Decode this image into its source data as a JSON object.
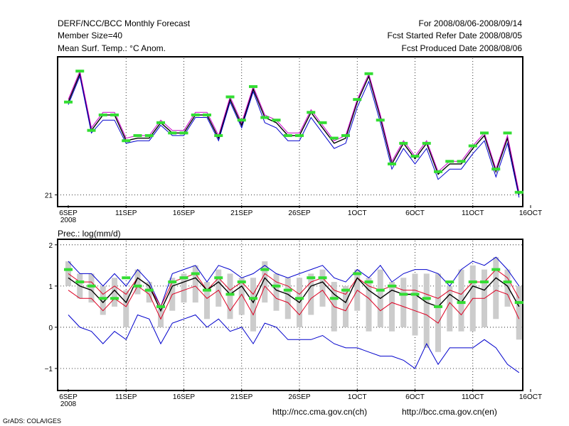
{
  "header": {
    "left1": "DERF/NCC/BCC Monthly Forecast",
    "left2": "Member Size=40",
    "left3": "Mean Surf. Temp.: °C Anom.",
    "right1": "For 2008/08/06-2008/09/14",
    "right2": "Fcst Started Refer Date 2008/08/05",
    "right3": "Fcst Produced Date 2008/08/06"
  },
  "footer": {
    "url_ch": "http://ncc.cma.gov.cn(ch)",
    "url_en": "http://bcc.cma.gov.cn(en)",
    "credit": "GrADS: COLA/IGES"
  },
  "colors": {
    "black": "#000000",
    "blue": "#0000cc",
    "red": "#dd0022",
    "magenta": "#cc00cc",
    "green": "#33dd33",
    "grey": "#cccccc"
  },
  "chart_data": [
    {
      "type": "line",
      "title": "Mean Surf. Temp.: °C Anom.",
      "x_ticks": [
        "6SEP",
        "11SEP",
        "16SEP",
        "21SEP",
        "26SEP",
        "1OCT",
        "6OCT",
        "11OCT",
        "16OCT"
      ],
      "x_year": "2008",
      "ylim": [
        20.6,
        26.3
      ],
      "y_ticks": [
        21
      ],
      "y_tick_labels": [
        "21"
      ],
      "series": [
        {
          "name": "ensemble mean",
          "color": "black",
          "values": [
            24.6,
            25.7,
            23.5,
            24.1,
            24.1,
            23.1,
            23.2,
            23.2,
            23.8,
            23.4,
            23.4,
            24.1,
            24.1,
            23.2,
            24.7,
            23.7,
            25.1,
            24.0,
            23.8,
            23.3,
            23.3,
            24.2,
            23.6,
            23.0,
            23.2,
            24.6,
            25.6,
            24.0,
            22.2,
            23.0,
            22.4,
            23.0,
            21.8,
            22.2,
            22.2,
            22.8,
            23.3,
            21.9,
            23.2,
            21.0
          ]
        },
        {
          "name": "member spread upper",
          "color": "magenta",
          "values": [
            24.7,
            25.8,
            23.6,
            24.2,
            24.2,
            23.2,
            23.3,
            23.3,
            23.9,
            23.5,
            23.5,
            24.2,
            24.2,
            23.3,
            24.8,
            23.8,
            25.2,
            24.1,
            23.9,
            23.4,
            23.4,
            24.3,
            23.7,
            23.1,
            23.3,
            24.7,
            25.7,
            24.1,
            22.3,
            23.1,
            22.5,
            23.1,
            21.9,
            22.3,
            22.3,
            22.9,
            23.4,
            22.0,
            23.3,
            21.1
          ]
        },
        {
          "name": "member spread lower",
          "color": "blue",
          "values": [
            24.5,
            25.6,
            23.4,
            23.9,
            23.9,
            23.0,
            23.1,
            23.1,
            23.7,
            23.3,
            23.3,
            24.0,
            24.0,
            23.1,
            24.6,
            23.6,
            25.0,
            23.8,
            23.6,
            23.1,
            23.1,
            24.0,
            23.4,
            22.8,
            23.0,
            24.4,
            25.4,
            23.8,
            22.0,
            22.8,
            22.2,
            22.8,
            21.6,
            22.0,
            22.0,
            22.6,
            23.1,
            21.7,
            23.0,
            20.9
          ]
        },
        {
          "name": "observed marker",
          "color": "green",
          "values": [
            24.6,
            25.8,
            23.5,
            24.1,
            24.1,
            23.1,
            23.3,
            23.3,
            23.8,
            23.4,
            23.4,
            24.1,
            24.1,
            23.3,
            24.8,
            23.9,
            25.2,
            24.0,
            23.9,
            23.3,
            23.3,
            24.2,
            23.8,
            23.2,
            23.3,
            24.7,
            25.7,
            23.9,
            22.2,
            23.0,
            22.5,
            23.0,
            21.9,
            22.3,
            22.3,
            22.9,
            23.4,
            22.0,
            23.4,
            21.1
          ]
        }
      ]
    },
    {
      "type": "line",
      "title": "Prec.: log(mm/d)",
      "x_ticks": [
        "6SEP",
        "11SEP",
        "16SEP",
        "21SEP",
        "26SEP",
        "1OCT",
        "6OCT",
        "11OCT",
        "16OCT"
      ],
      "x_year": "2008",
      "ylim": [
        -1.5,
        2.1
      ],
      "y_ticks": [
        2,
        1,
        0,
        -1
      ],
      "y_tick_labels": [
        "2",
        "1",
        "0",
        "−1"
      ],
      "series": [
        {
          "name": "max",
          "color": "blue",
          "values": [
            1.6,
            1.3,
            1.3,
            1.0,
            1.3,
            1.0,
            1.4,
            1.1,
            0.5,
            1.3,
            1.4,
            1.5,
            1.1,
            1.5,
            1.4,
            1.2,
            1.3,
            1.5,
            1.3,
            1.2,
            1.3,
            1.4,
            1.5,
            1.2,
            1.1,
            1.4,
            1.2,
            1.5,
            1.1,
            1.3,
            1.4,
            1.4,
            1.3,
            1.0,
            1.4,
            1.6,
            1.5,
            1.7,
            1.4,
            1.0
          ]
        },
        {
          "name": "upper",
          "color": "red",
          "values": [
            1.3,
            1.1,
            1.1,
            0.8,
            1.0,
            0.8,
            1.2,
            1.0,
            0.5,
            1.1,
            1.2,
            1.3,
            0.9,
            1.2,
            0.9,
            1.1,
            0.8,
            1.3,
            1.1,
            1.0,
            0.8,
            1.1,
            1.2,
            0.9,
            0.8,
            1.2,
            1.0,
            0.9,
            1.0,
            0.9,
            0.9,
            0.8,
            0.7,
            0.9,
            0.8,
            1.1,
            1.1,
            1.4,
            1.2,
            0.7
          ]
        },
        {
          "name": "median",
          "color": "black",
          "values": [
            1.2,
            1.0,
            0.9,
            0.6,
            0.9,
            0.6,
            1.2,
            1.0,
            0.4,
            1.0,
            1.1,
            1.2,
            0.9,
            1.1,
            0.8,
            1.0,
            0.6,
            1.2,
            0.9,
            0.8,
            0.6,
            1.0,
            1.1,
            0.8,
            0.6,
            1.2,
            0.9,
            0.7,
            0.9,
            0.8,
            0.8,
            0.6,
            0.5,
            0.8,
            0.6,
            1.0,
            0.9,
            1.2,
            1.0,
            0.5
          ]
        },
        {
          "name": "lower",
          "color": "red",
          "values": [
            0.9,
            0.7,
            0.7,
            0.4,
            0.7,
            0.5,
            1.0,
            0.8,
            0.2,
            0.8,
            0.9,
            1.0,
            0.7,
            0.9,
            0.4,
            0.8,
            0.3,
            1.0,
            0.7,
            0.6,
            0.3,
            0.7,
            0.9,
            0.5,
            0.4,
            0.9,
            0.7,
            0.4,
            0.6,
            0.5,
            0.4,
            0.3,
            0.1,
            0.6,
            0.3,
            0.7,
            0.7,
            0.9,
            0.8,
            0.2
          ]
        },
        {
          "name": "min",
          "color": "blue",
          "values": [
            0.3,
            0.0,
            -0.1,
            -0.4,
            -0.1,
            -0.3,
            0.3,
            0.2,
            -0.4,
            0.1,
            0.2,
            0.3,
            0.0,
            0.2,
            -0.1,
            0.0,
            -0.4,
            0.1,
            0.0,
            -0.3,
            -0.3,
            -0.3,
            -0.2,
            -0.4,
            -0.5,
            -0.5,
            -0.6,
            -0.7,
            -0.7,
            -0.8,
            -1.0,
            -0.4,
            -0.9,
            -0.5,
            -0.5,
            -0.5,
            -0.3,
            -0.5,
            -0.9,
            -1.1
          ]
        },
        {
          "name": "observed marker",
          "color": "green",
          "values": [
            1.4,
            1.1,
            1.0,
            0.7,
            0.7,
            1.2,
            1.0,
            0.9,
            0.5,
            1.1,
            1.2,
            1.3,
            0.9,
            1.2,
            0.8,
            1.1,
            0.7,
            1.4,
            1.0,
            0.9,
            0.7,
            1.2,
            1.2,
            0.7,
            0.9,
            1.3,
            1.1,
            0.9,
            1.0,
            0.8,
            0.8,
            0.7,
            0.5,
            1.1,
            0.6,
            1.1,
            1.1,
            1.4,
            1.1,
            0.6
          ]
        }
      ],
      "box_whiskers": {
        "name": "grey spread bars",
        "color": "grey",
        "low": [
          1.0,
          0.7,
          0.6,
          0.3,
          0.5,
          0.0,
          0.8,
          0.6,
          0.0,
          0.4,
          0.6,
          0.6,
          0.2,
          0.5,
          0.2,
          0.3,
          -0.1,
          0.6,
          0.4,
          0.2,
          0.0,
          0.3,
          0.5,
          -0.1,
          0.0,
          0.4,
          -0.1,
          0.0,
          -0.1,
          0.0,
          -0.2,
          -0.5,
          -0.6,
          -0.1,
          -0.1,
          -0.1,
          0.0,
          0.2,
          0.5,
          -0.3
        ],
        "high": [
          1.6,
          1.3,
          1.3,
          1.0,
          1.2,
          0.9,
          1.4,
          1.1,
          0.5,
          1.2,
          1.3,
          1.5,
          1.1,
          1.4,
          1.3,
          1.2,
          1.2,
          1.6,
          1.3,
          1.2,
          1.2,
          1.3,
          1.4,
          1.1,
          1.0,
          1.4,
          1.2,
          1.4,
          1.1,
          1.2,
          1.3,
          1.3,
          1.3,
          1.0,
          1.4,
          1.5,
          1.4,
          1.7,
          1.4,
          1.0
        ]
      }
    }
  ]
}
